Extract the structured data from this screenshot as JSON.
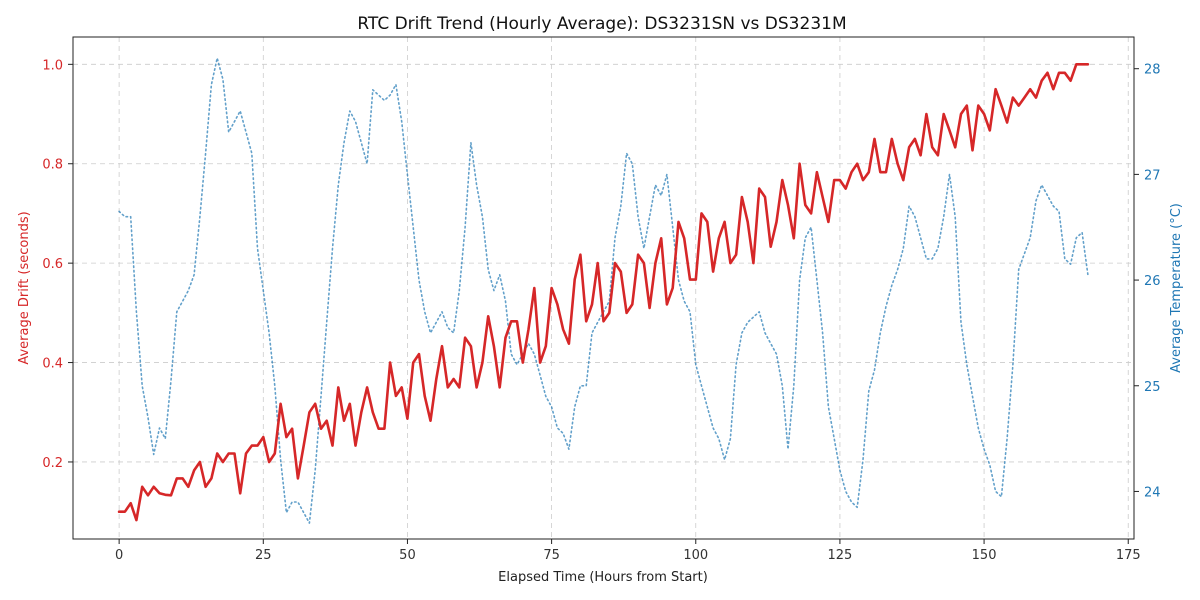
{
  "chart_data": {
    "type": "line",
    "title": "RTC Drift Trend (Hourly Average): DS3231SN vs DS3231M",
    "xlabel": "Elapsed Time (Hours from Start)",
    "ylabel_left": "Average Drift (seconds)",
    "ylabel_right": "Average Temperature (°C)",
    "xlim": [
      -8,
      176
    ],
    "ylim_left": [
      0.045,
      1.055
    ],
    "ylim_right": [
      23.55,
      28.3
    ],
    "x_ticks": [
      0,
      25,
      50,
      75,
      100,
      125,
      150,
      175
    ],
    "y_ticks_left": [
      0.2,
      0.4,
      0.6,
      0.8,
      1.0
    ],
    "y_ticks_right": [
      24,
      25,
      26,
      27,
      28
    ],
    "grid": true,
    "colors": {
      "drift": "#d62728",
      "temperature": "#1f77b4",
      "grid": "#cccccc"
    },
    "series": [
      {
        "name": "Average Drift",
        "axis": "left",
        "style": "solid",
        "color": "#d62728",
        "x": [
          0,
          1,
          2,
          3,
          4,
          5,
          6,
          7,
          8,
          9,
          10,
          11,
          12,
          13,
          14,
          15,
          16,
          17,
          18,
          19,
          20,
          21,
          22,
          23,
          24,
          25,
          26,
          27,
          28,
          29,
          30,
          31,
          32,
          33,
          34,
          35,
          36,
          37,
          38,
          39,
          40,
          41,
          42,
          43,
          44,
          45,
          46,
          47,
          48,
          49,
          50,
          51,
          52,
          53,
          54,
          55,
          56,
          57,
          58,
          59,
          60,
          61,
          62,
          63,
          64,
          65,
          66,
          67,
          68,
          69,
          70,
          71,
          72,
          73,
          74,
          75,
          76,
          77,
          78,
          79,
          80,
          81,
          82,
          83,
          84,
          85,
          86,
          87,
          88,
          89,
          90,
          91,
          92,
          93,
          94,
          95,
          96,
          97,
          98,
          99,
          100,
          101,
          102,
          103,
          104,
          105,
          106,
          107,
          108,
          109,
          110,
          111,
          112,
          113,
          114,
          115,
          116,
          117,
          118,
          119,
          120,
          121,
          122,
          123,
          124,
          125,
          126,
          127,
          128,
          129,
          130,
          131,
          132,
          133,
          134,
          135,
          136,
          137,
          138,
          139,
          140,
          141,
          142,
          143,
          144,
          145,
          146,
          147,
          148,
          149,
          150,
          151,
          152,
          153,
          154,
          155,
          156,
          157,
          158,
          159,
          160,
          161,
          162,
          163,
          164,
          165,
          166,
          167,
          168
        ],
        "y": [
          0.1,
          0.1,
          0.117,
          0.083,
          0.15,
          0.133,
          0.15,
          0.137,
          0.134,
          0.133,
          0.167,
          0.167,
          0.15,
          0.183,
          0.2,
          0.15,
          0.167,
          0.217,
          0.2,
          0.217,
          0.217,
          0.137,
          0.217,
          0.233,
          0.233,
          0.25,
          0.2,
          0.217,
          0.317,
          0.25,
          0.267,
          0.167,
          0.233,
          0.3,
          0.317,
          0.267,
          0.283,
          0.233,
          0.35,
          0.283,
          0.317,
          0.233,
          0.3,
          0.35,
          0.3,
          0.267,
          0.267,
          0.4,
          0.333,
          0.35,
          0.287,
          0.4,
          0.417,
          0.333,
          0.283,
          0.367,
          0.433,
          0.35,
          0.367,
          0.35,
          0.45,
          0.433,
          0.35,
          0.4,
          0.493,
          0.433,
          0.35,
          0.45,
          0.483,
          0.483,
          0.4,
          0.467,
          0.55,
          0.4,
          0.433,
          0.55,
          0.517,
          0.467,
          0.438,
          0.567,
          0.617,
          0.483,
          0.517,
          0.6,
          0.483,
          0.5,
          0.6,
          0.583,
          0.5,
          0.517,
          0.617,
          0.6,
          0.51,
          0.6,
          0.65,
          0.517,
          0.55,
          0.683,
          0.65,
          0.567,
          0.567,
          0.7,
          0.683,
          0.583,
          0.65,
          0.683,
          0.6,
          0.617,
          0.733,
          0.683,
          0.6,
          0.75,
          0.733,
          0.633,
          0.683,
          0.767,
          0.717,
          0.65,
          0.8,
          0.717,
          0.7,
          0.783,
          0.733,
          0.683,
          0.767,
          0.767,
          0.75,
          0.783,
          0.8,
          0.767,
          0.783,
          0.85,
          0.783,
          0.783,
          0.85,
          0.8,
          0.767,
          0.833,
          0.85,
          0.817,
          0.9,
          0.833,
          0.817,
          0.9,
          0.867,
          0.833,
          0.9,
          0.917,
          0.827,
          0.917,
          0.9,
          0.867,
          0.95,
          0.917,
          0.883,
          0.933,
          0.917,
          0.933,
          0.95,
          0.933,
          0.967,
          0.983,
          0.95,
          0.983,
          0.983,
          0.967,
          1.0,
          1.0,
          1.0
        ]
      },
      {
        "name": "Average Temperature",
        "axis": "right",
        "style": "dotted",
        "color": "#1f77b4",
        "x": [
          0,
          1,
          2,
          3,
          4,
          5,
          6,
          7,
          8,
          9,
          10,
          11,
          12,
          13,
          14,
          15,
          16,
          17,
          18,
          19,
          20,
          21,
          22,
          23,
          24,
          25,
          26,
          27,
          28,
          29,
          30,
          31,
          32,
          33,
          34,
          35,
          36,
          37,
          38,
          39,
          40,
          41,
          42,
          43,
          44,
          45,
          46,
          47,
          48,
          49,
          50,
          51,
          52,
          53,
          54,
          55,
          56,
          57,
          58,
          59,
          60,
          61,
          62,
          63,
          64,
          65,
          66,
          67,
          68,
          69,
          70,
          71,
          72,
          73,
          74,
          75,
          76,
          77,
          78,
          79,
          80,
          81,
          82,
          83,
          84,
          85,
          86,
          87,
          88,
          89,
          90,
          91,
          92,
          93,
          94,
          95,
          96,
          97,
          98,
          99,
          100,
          101,
          102,
          103,
          104,
          105,
          106,
          107,
          108,
          109,
          110,
          111,
          112,
          113,
          114,
          115,
          116,
          117,
          118,
          119,
          120,
          121,
          122,
          123,
          124,
          125,
          126,
          127,
          128,
          129,
          130,
          131,
          132,
          133,
          134,
          135,
          136,
          137,
          138,
          139,
          140,
          141,
          142,
          143,
          144,
          145,
          146,
          147,
          148,
          149,
          150,
          151,
          152,
          153,
          154,
          155,
          156,
          157,
          158,
          159,
          160,
          161,
          162,
          163,
          164,
          165,
          166,
          167,
          168
        ],
        "y": [
          26.65,
          26.6,
          26.6,
          25.7,
          25.0,
          24.7,
          24.35,
          24.6,
          24.5,
          25.05,
          25.7,
          25.8,
          25.9,
          26.05,
          26.6,
          27.2,
          27.85,
          28.1,
          27.9,
          27.4,
          27.5,
          27.6,
          27.4,
          27.2,
          26.3,
          25.9,
          25.5,
          25.0,
          24.3,
          23.8,
          23.9,
          23.9,
          23.8,
          23.7,
          24.2,
          24.9,
          25.6,
          26.3,
          26.9,
          27.3,
          27.6,
          27.5,
          27.3,
          27.1,
          27.8,
          27.75,
          27.7,
          27.75,
          27.85,
          27.5,
          27.0,
          26.5,
          26.0,
          25.7,
          25.5,
          25.6,
          25.7,
          25.55,
          25.5,
          25.9,
          26.5,
          27.3,
          26.9,
          26.6,
          26.1,
          25.9,
          26.05,
          25.8,
          25.3,
          25.2,
          25.3,
          25.4,
          25.3,
          25.1,
          24.9,
          24.8,
          24.6,
          24.55,
          24.4,
          24.8,
          25.0,
          25.0,
          25.5,
          25.6,
          25.7,
          25.8,
          26.4,
          26.7,
          27.2,
          27.1,
          26.6,
          26.3,
          26.6,
          26.9,
          26.8,
          27.0,
          26.5,
          26.0,
          25.8,
          25.7,
          25.2,
          25.0,
          24.8,
          24.6,
          24.5,
          24.3,
          24.5,
          25.2,
          25.5,
          25.6,
          25.65,
          25.7,
          25.5,
          25.4,
          25.3,
          25.0,
          24.4,
          25.0,
          26.0,
          26.4,
          26.5,
          26.0,
          25.5,
          24.8,
          24.5,
          24.2,
          24.0,
          23.9,
          23.85,
          24.3,
          24.95,
          25.15,
          25.5,
          25.75,
          25.95,
          26.1,
          26.3,
          26.7,
          26.6,
          26.4,
          26.2,
          26.2,
          26.3,
          26.6,
          27.0,
          26.6,
          25.6,
          25.2,
          24.9,
          24.6,
          24.4,
          24.25,
          24.0,
          23.95,
          24.5,
          25.2,
          26.1,
          26.25,
          26.4,
          26.75,
          26.9,
          26.8,
          26.7,
          26.65,
          26.2,
          26.15,
          26.4,
          26.45,
          26.05
        ]
      }
    ]
  }
}
